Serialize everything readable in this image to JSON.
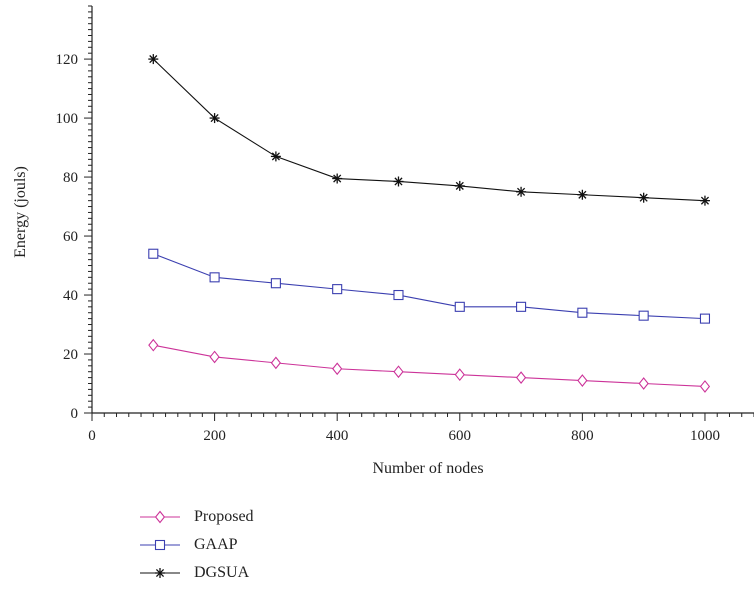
{
  "chart_data": {
    "type": "line",
    "title": "",
    "xlabel": "Number of nodes",
    "ylabel": "Energy (jouls)",
    "xlim": [
      0,
      1080
    ],
    "ylim": [
      0,
      138
    ],
    "xticks": [
      0,
      200,
      400,
      600,
      800,
      1000
    ],
    "yticks": [
      0,
      20,
      40,
      60,
      80,
      100,
      120
    ],
    "x": [
      100,
      200,
      300,
      400,
      500,
      600,
      700,
      800,
      900,
      1000
    ],
    "series": [
      {
        "name": "Proposed",
        "color": "#cc3399",
        "marker": "diamond",
        "values": [
          23,
          19,
          17,
          15,
          14,
          13,
          12,
          11,
          10,
          9
        ]
      },
      {
        "name": "GAAP",
        "color": "#3b3fb0",
        "marker": "square",
        "values": [
          54,
          46,
          44,
          42,
          40,
          36,
          36,
          34,
          33,
          32
        ]
      },
      {
        "name": "DGSUA",
        "color": "#111111",
        "marker": "star",
        "values": [
          120,
          100,
          87,
          79.5,
          78.5,
          77,
          75,
          74,
          73,
          72
        ]
      }
    ],
    "legend_position": "bottom-left",
    "grid": false
  }
}
